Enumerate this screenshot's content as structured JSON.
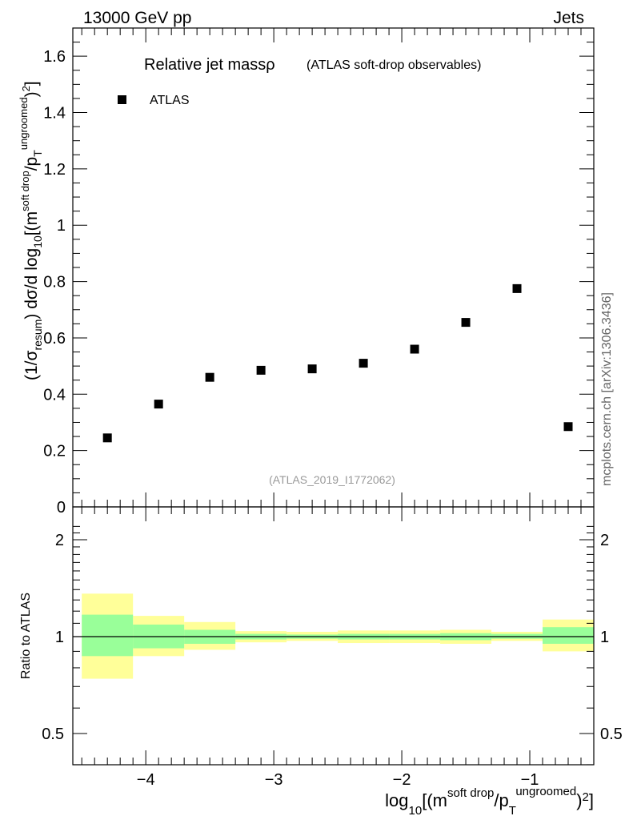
{
  "header": {
    "left": "13000 GeV pp",
    "right": "Jets"
  },
  "side_label": "mcplots.cern.ch [arXiv:1306.3436]",
  "chart_data": [
    {
      "type": "scatter",
      "title_main": "Relative jet massρ",
      "title_sub": "(ATLAS soft-drop observables)",
      "watermark": "(ATLAS_2019_I1772062)",
      "legend": {
        "label": "ATLAS",
        "placement": "top-left"
      },
      "ylabel": "(1/σresum) dσ/d log10[(m^soft drop/p_T^ungroomed)^2]",
      "ylim": [
        0,
        1.7
      ],
      "yticks": [
        "0",
        "0.2",
        "0.4",
        "0.6",
        "0.8",
        "1",
        "1.2",
        "1.4",
        "1.6"
      ],
      "xlim": [
        -4.57,
        -0.5
      ],
      "series": [
        {
          "name": "ATLAS",
          "x": [
            -4.3,
            -3.9,
            -3.5,
            -3.1,
            -2.7,
            -2.3,
            -1.9,
            -1.5,
            -1.1,
            -0.7
          ],
          "values": [
            0.245,
            0.365,
            0.46,
            0.485,
            0.49,
            0.51,
            0.56,
            0.655,
            0.775,
            0.285
          ]
        }
      ]
    },
    {
      "type": "area",
      "ylabel": "Ratio to ATLAS",
      "ylim": [
        0.4,
        2.3
      ],
      "y_scale": "log",
      "yticks_left": [
        "0.5",
        "1",
        "2"
      ],
      "yticks_right": [
        "0.5",
        "1",
        "2"
      ],
      "xlabel": "log10[(m^soft drop/p_T^ungroomed)^2]",
      "xticks": [
        "−4",
        "−3",
        "−2",
        "−1"
      ],
      "xlim": [
        -4.57,
        -0.5
      ],
      "bins": [
        {
          "x0": -4.5,
          "x1": -4.1,
          "green": [
            0.87,
            1.17
          ],
          "yellow": [
            0.74,
            1.36
          ]
        },
        {
          "x0": -4.1,
          "x1": -3.7,
          "green": [
            0.92,
            1.09
          ],
          "yellow": [
            0.87,
            1.16
          ]
        },
        {
          "x0": -3.7,
          "x1": -3.3,
          "green": [
            0.95,
            1.05
          ],
          "yellow": [
            0.91,
            1.11
          ]
        },
        {
          "x0": -3.3,
          "x1": -2.9,
          "green": [
            0.98,
            1.02
          ],
          "yellow": [
            0.96,
            1.04
          ]
        },
        {
          "x0": -2.9,
          "x1": -2.5,
          "green": [
            0.985,
            1.015
          ],
          "yellow": [
            0.97,
            1.035
          ]
        },
        {
          "x0": -2.5,
          "x1": -2.1,
          "green": [
            0.98,
            1.02
          ],
          "yellow": [
            0.955,
            1.045
          ]
        },
        {
          "x0": -2.1,
          "x1": -1.7,
          "green": [
            0.98,
            1.02
          ],
          "yellow": [
            0.955,
            1.045
          ]
        },
        {
          "x0": -1.7,
          "x1": -1.3,
          "green": [
            0.975,
            1.025
          ],
          "yellow": [
            0.95,
            1.05
          ]
        },
        {
          "x0": -1.3,
          "x1": -0.9,
          "green": [
            0.985,
            1.02
          ],
          "yellow": [
            0.97,
            1.035
          ]
        },
        {
          "x0": -0.9,
          "x1": -0.5,
          "green": [
            0.95,
            1.07
          ],
          "yellow": [
            0.9,
            1.13
          ]
        }
      ]
    }
  ],
  "colors": {
    "green_band": "#99ff99",
    "yellow_band": "#ffff99",
    "marker": "#000000",
    "watermark": "#999999",
    "side_label": "#666666"
  }
}
